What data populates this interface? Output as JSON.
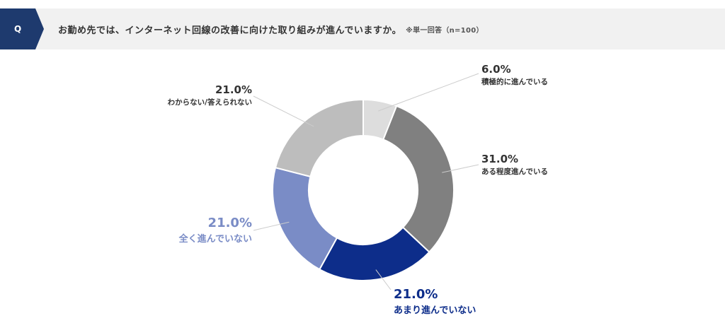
{
  "header": {
    "badge": "Q",
    "question": "お勤め先では、インターネット回線の改善に向けた取り組みが進んでいますか。",
    "note": "※単一回答（n=100）"
  },
  "chart_data": {
    "type": "pie",
    "variant": "donut",
    "title": "お勤め先では、インターネット回線の改善に向けた取り組みが進んでいますか。",
    "categories": [
      "積極的に進んでいる",
      "ある程度進んでいる",
      "あまり進んでいない",
      "全く進んでいない",
      "わからない/答えられない"
    ],
    "values": [
      6.0,
      31.0,
      21.0,
      21.0,
      21.0
    ],
    "value_labels": [
      "6.0%",
      "31.0%",
      "21.0%",
      "21.0%",
      "21.0%"
    ],
    "colors": [
      "#dddddd",
      "#808080",
      "#0d2d8a",
      "#7a8cc6",
      "#bdbdbd"
    ],
    "label_colors": [
      "#333333",
      "#333333",
      "#0d2d8a",
      "#7a8cc6",
      "#333333"
    ],
    "start_angle_deg": 0,
    "direction": "clockwise",
    "sample_size": 100
  }
}
